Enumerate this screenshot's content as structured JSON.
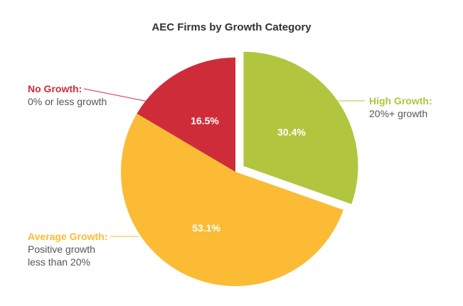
{
  "chart_data": {
    "type": "pie",
    "title": "AEC Firms by Growth Category",
    "slices": [
      {
        "key": "high",
        "name": "High Growth:",
        "description": "20%+ growth",
        "value": 30.4,
        "label": "30.4%",
        "color": "#b2c53f",
        "exploded": true
      },
      {
        "key": "average",
        "name": "Average Growth:",
        "description": "Positive growth less than 20%",
        "value": 53.1,
        "label": "53.1%",
        "color": "#fbbb34",
        "exploded": false
      },
      {
        "key": "none",
        "name": "No Growth:",
        "description": "0% or less growth",
        "value": 16.5,
        "label": "16.5%",
        "color": "#cf2c3a",
        "exploded": false
      }
    ],
    "start_angle_deg": 0,
    "direction": "clockwise",
    "legend_position": "callouts"
  },
  "title": "AEC Firms by Growth Category",
  "labels": {
    "high": {
      "head": "High Growth:",
      "desc": "20%+ growth",
      "color": "#b2c53f"
    },
    "average": {
      "head": "Average Growth:",
      "desc_line1": "Positive growth",
      "desc_line2": "less than 20%",
      "color": "#fbbb34"
    },
    "none": {
      "head": "No Growth:",
      "desc": "0% or less growth",
      "color": "#cf2c3a"
    }
  }
}
